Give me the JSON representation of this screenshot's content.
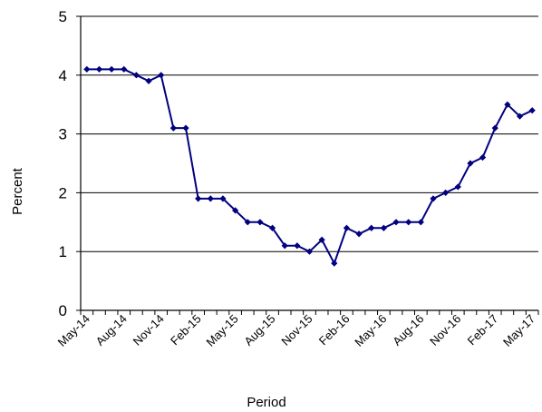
{
  "chart_data": {
    "type": "line",
    "title": "",
    "xlabel": "Period",
    "ylabel": "Percent",
    "ylim": [
      0,
      5
    ],
    "yticks": [
      "0",
      "1",
      "2",
      "3",
      "4",
      "5"
    ],
    "grid": "horizontal",
    "legend": "none",
    "x": [
      "May-14",
      "Jun-14",
      "Jul-14",
      "Aug-14",
      "Sep-14",
      "Oct-14",
      "Nov-14",
      "Dec-14",
      "Jan-15",
      "Feb-15",
      "Mar-15",
      "Apr-15",
      "May-15",
      "Jun-15",
      "Jul-15",
      "Aug-15",
      "Sep-15",
      "Oct-15",
      "Nov-15",
      "Dec-15",
      "Jan-16",
      "Feb-16",
      "Mar-16",
      "Apr-16",
      "May-16",
      "Jun-16",
      "Jul-16",
      "Aug-16",
      "Sep-16",
      "Oct-16",
      "Nov-16",
      "Dec-16",
      "Jan-17",
      "Feb-17",
      "Mar-17",
      "Apr-17",
      "May-17"
    ],
    "xtick_labels": [
      "May-14",
      "Aug-14",
      "Nov-14",
      "Feb-15",
      "May-15",
      "Aug-15",
      "Nov-15",
      "Feb-16",
      "May-16",
      "Aug-16",
      "Nov-16",
      "Feb-17",
      "May-17"
    ],
    "series": [
      {
        "values": [
          4.1,
          4.1,
          4.1,
          4.1,
          4.0,
          3.9,
          4.0,
          3.1,
          3.1,
          1.9,
          1.9,
          1.9,
          1.7,
          1.5,
          1.5,
          1.4,
          1.1,
          1.1,
          1.0,
          1.2,
          0.8,
          1.4,
          1.3,
          1.4,
          1.4,
          1.5,
          1.5,
          1.5,
          1.9,
          2.0,
          2.1,
          2.5,
          2.6,
          3.1,
          3.5,
          3.3,
          3.4
        ],
        "color": "#000080"
      }
    ]
  }
}
